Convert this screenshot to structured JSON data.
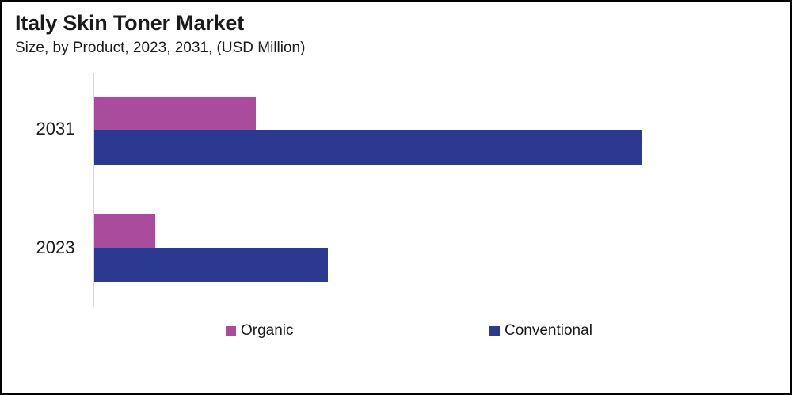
{
  "chart_data": {
    "type": "bar",
    "orientation": "horizontal",
    "title": "Italy Skin Toner Market",
    "subtitle": "Size, by Product, 2023, 2031, (USD Million)",
    "categories": [
      "2031",
      "2023"
    ],
    "series": [
      {
        "name": "Organic",
        "color": "#A94C9B",
        "values": [
          29.5,
          11.1
        ]
      },
      {
        "name": "Conventional",
        "color": "#2B3990",
        "values": [
          100,
          42.7
        ]
      }
    ],
    "value_axis": {
      "tick_labels_shown": false,
      "note": "No numeric axis or data labels are visible; values are estimated from bar lengths, normalized so the longest bar (Conventional 2031) = 100."
    },
    "legend_position": "bottom",
    "grid": false
  },
  "colors": {
    "axis_line": "#D9D9D9",
    "text": "#1A1A1A",
    "frame_border": "#000000",
    "background": "#FFFFFF"
  }
}
